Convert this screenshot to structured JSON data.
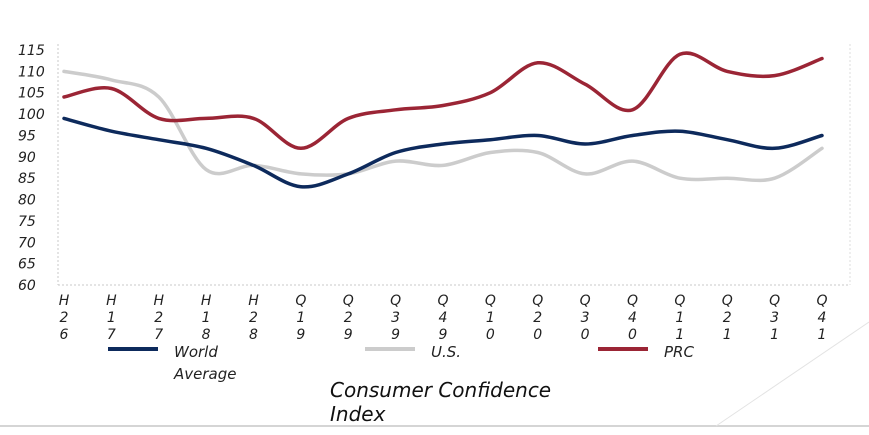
{
  "chart_data": {
    "type": "line",
    "title": "Consumer Confidence Index",
    "xlabel": "",
    "ylabel": "",
    "categories": [
      "H2 06",
      "H1 07",
      "H2 07",
      "H1 08",
      "H2 08",
      "Q1 09",
      "Q2 09",
      "Q3 09",
      "Q4 09",
      "Q1 10",
      "Q2 10",
      "Q3 10",
      "Q4 10",
      "Q1 11",
      "Q2 11",
      "Q3 11",
      "Q4 11"
    ],
    "category_tick_labels": [
      [
        "H",
        "2",
        "6"
      ],
      [
        "H",
        "1",
        "7"
      ],
      [
        "H",
        "2",
        "7"
      ],
      [
        "H",
        "1",
        "8"
      ],
      [
        "H",
        "2",
        "8"
      ],
      [
        "Q",
        "1",
        "9"
      ],
      [
        "Q",
        "2",
        "9"
      ],
      [
        "Q",
        "3",
        "9"
      ],
      [
        "Q",
        "4",
        "9"
      ],
      [
        "Q",
        "1",
        "0"
      ],
      [
        "Q",
        "2",
        "0"
      ],
      [
        "Q",
        "3",
        "0"
      ],
      [
        "Q",
        "4",
        "0"
      ],
      [
        "Q",
        "1",
        "1"
      ],
      [
        "Q",
        "2",
        "1"
      ],
      [
        "Q",
        "3",
        "1"
      ],
      [
        "Q",
        "4",
        "1"
      ]
    ],
    "y_tick_labels": [
      "60",
      "65",
      "70",
      "75",
      "80",
      "85",
      "90",
      "95",
      "100",
      "105",
      "110",
      "115"
    ],
    "ylim": [
      60,
      115
    ],
    "grid": false,
    "legend_position": "bottom",
    "series": [
      {
        "name": "World Average",
        "color": "#0d2a5c",
        "values": [
          99,
          96,
          94,
          92,
          88,
          83,
          86,
          91,
          93,
          94,
          95,
          93,
          95,
          96,
          94,
          92,
          95
        ]
      },
      {
        "name": "U.S.",
        "color": "#cccccc",
        "values": [
          110,
          108,
          104,
          87,
          88,
          86,
          86,
          89,
          88,
          91,
          91,
          86,
          89,
          85,
          85,
          85,
          92
        ]
      },
      {
        "name": "PRC",
        "color": "#9b2535",
        "values": [
          104,
          106,
          99,
          99,
          99,
          92,
          99,
          101,
          102,
          105,
          112,
          107,
          101,
          114,
          110,
          109,
          113
        ]
      }
    ]
  }
}
